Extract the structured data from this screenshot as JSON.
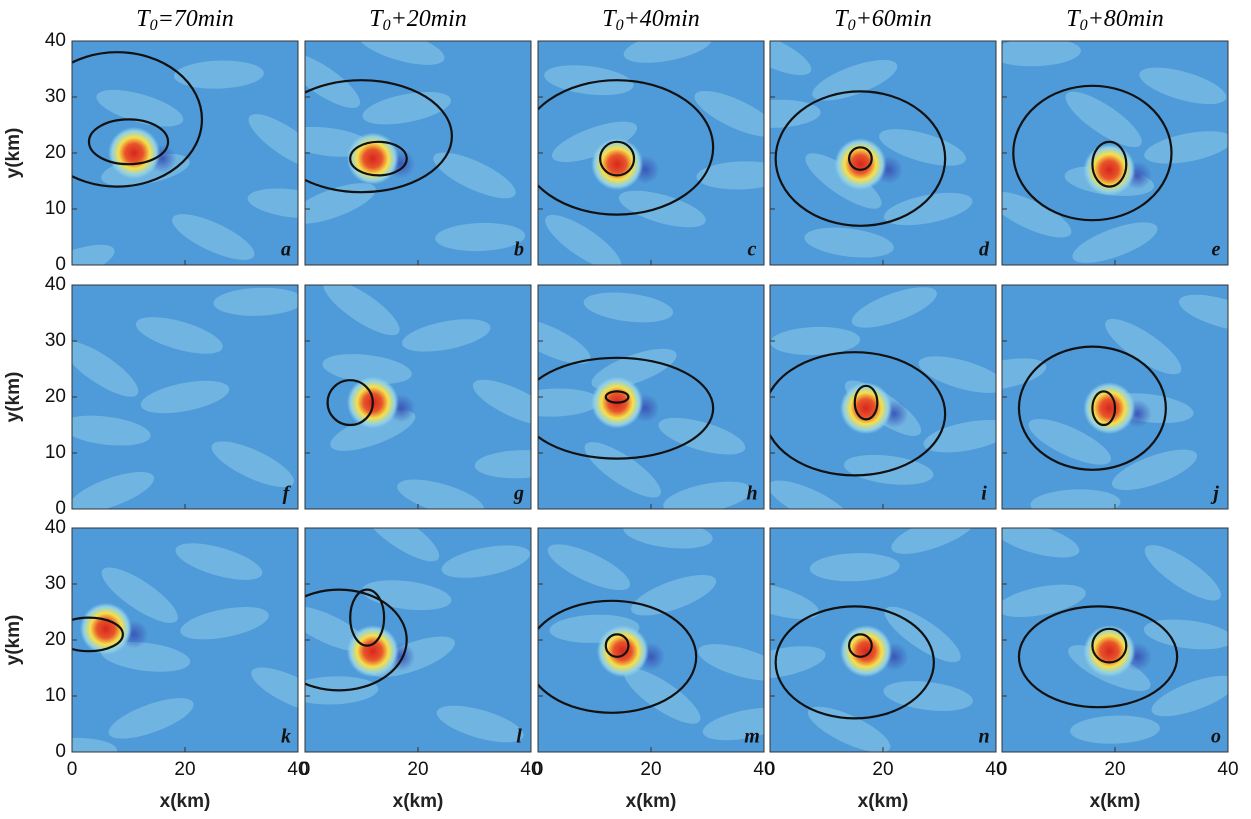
{
  "figure": {
    "columns": [
      {
        "main": "T",
        "sub": "0",
        "suffix": "=70min"
      },
      {
        "main": "T",
        "sub": "0",
        "suffix": "+20min"
      },
      {
        "main": "T",
        "sub": "0",
        "suffix": "+40min"
      },
      {
        "main": "T",
        "sub": "0",
        "suffix": "+60min"
      },
      {
        "main": "T",
        "sub": "0",
        "suffix": "+80min"
      }
    ],
    "panel_labels": [
      [
        "a",
        "b",
        "c",
        "d",
        "e"
      ],
      [
        "f",
        "g",
        "h",
        "i",
        "j"
      ],
      [
        "k",
        "l",
        "m",
        "n",
        "o"
      ]
    ],
    "xlabel": "x(km)",
    "ylabel": "y(km)",
    "xlim": [
      0,
      40
    ],
    "ylim": [
      0,
      40
    ],
    "xticks": [
      0,
      20,
      40
    ],
    "yticks": [
      0,
      10,
      20,
      30,
      40
    ]
  }
}
